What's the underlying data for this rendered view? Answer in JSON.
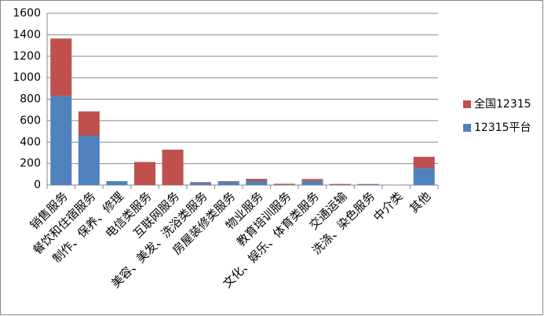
{
  "chart_data": {
    "type": "stacked-bar",
    "categories": [
      "销售服务",
      "餐饮和住宿服务",
      "制作、保养、修理",
      "电信类服务",
      "互联网服务",
      "美容、美发、洗浴类服务",
      "房屋装修类服务",
      "物业服务",
      "教育培训服务",
      "文化、娱乐、体育类服务",
      "交通运输",
      "洗涤、染色服务",
      "中介类",
      "其他"
    ],
    "series": [
      {
        "name": "12315平台",
        "color": "#4f81bd",
        "values": [
          832,
          460,
          36,
          0,
          0,
          22,
          33,
          40,
          4,
          38,
          3,
          8,
          0,
          160
        ]
      },
      {
        "name": "全国12315",
        "color": "#c0504d",
        "values": [
          533,
          226,
          0,
          215,
          330,
          5,
          3,
          18,
          8,
          18,
          7,
          2,
          0,
          103
        ]
      }
    ],
    "ylim": [
      0,
      1600
    ],
    "yticks": [
      0,
      200,
      400,
      600,
      800,
      1000,
      1200,
      1400,
      1600
    ],
    "grid": true,
    "legend": "right"
  }
}
